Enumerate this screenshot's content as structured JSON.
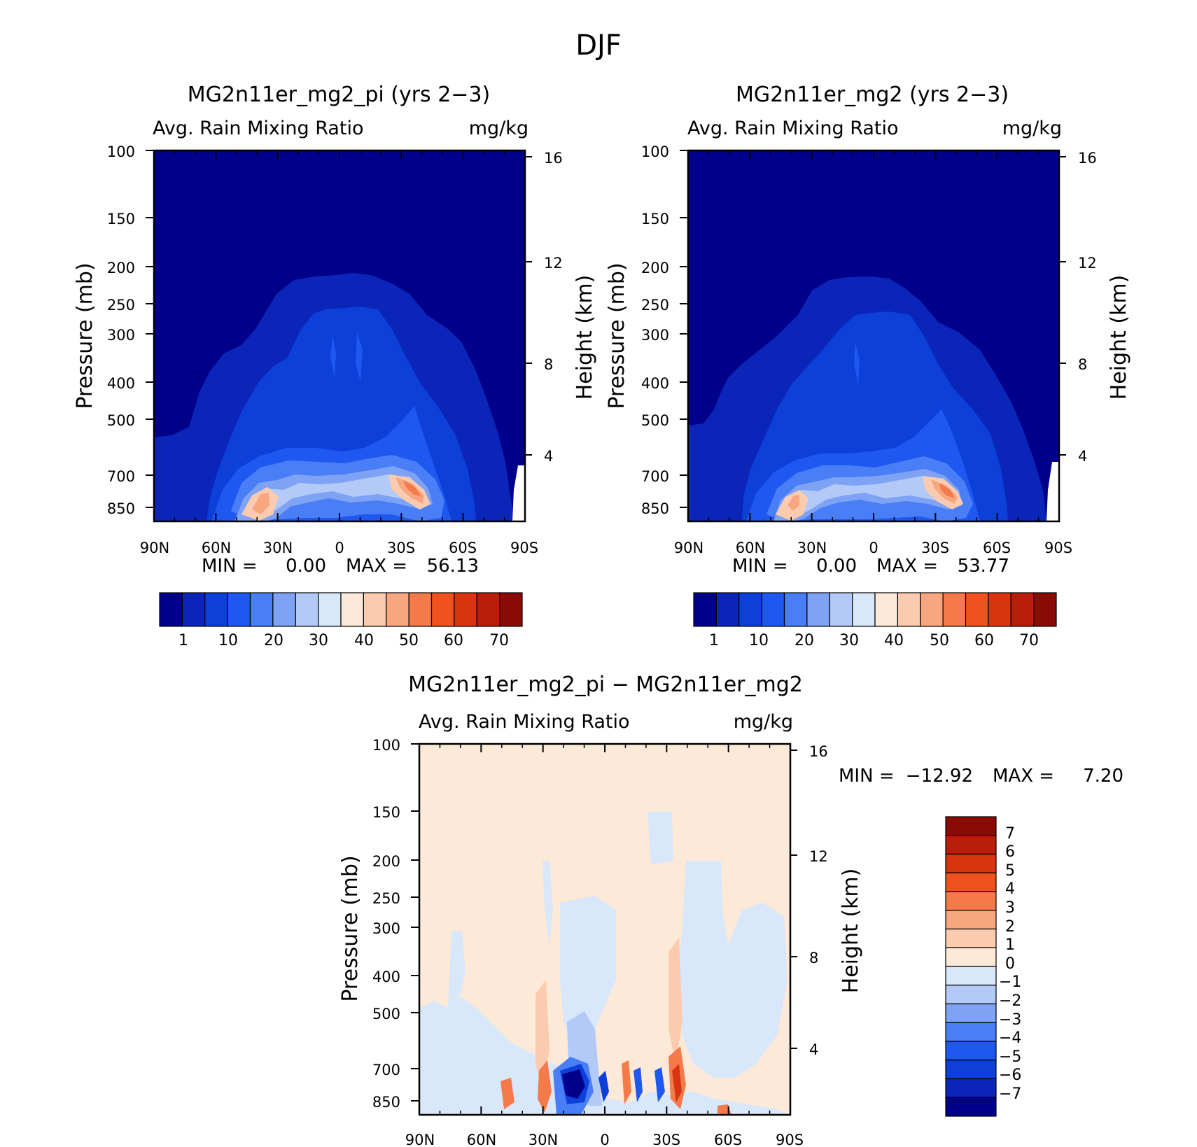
{
  "figure_title": "DJF",
  "panels": {
    "left": {
      "title": "MG2n11er_mg2_pi (yrs 2-3)",
      "subtitle": "Avg. Rain Mixing Ratio",
      "units": "mg/kg",
      "ylabel": "Pressure (mb)",
      "ylabel_right": "Height (km)",
      "min_label": "MIN =",
      "min_value": "0.00",
      "max_label": "MAX =",
      "max_value": "56.13"
    },
    "right": {
      "title": "MG2n11er_mg2 (yrs 2-3)",
      "subtitle": "Avg. Rain Mixing Ratio",
      "units": "mg/kg",
      "ylabel": "Pressure (mb)",
      "ylabel_right": "Height (km)",
      "min_label": "MIN =",
      "min_value": "0.00",
      "max_label": "MAX =",
      "max_value": "53.77"
    },
    "diff": {
      "title": "MG2n11er_mg2_pi - MG2n11er_mg2",
      "subtitle": "Avg. Rain Mixing Ratio",
      "units": "mg/kg",
      "ylabel": "Pressure (mb)",
      "ylabel_right": "Height (km)",
      "min_label": "MIN =",
      "min_value": "-12.92",
      "max_label": "MAX =",
      "max_value": "7.20"
    }
  },
  "chart_data": [
    {
      "type": "heatmap",
      "name": "MG2n11er_mg2_pi (yrs 2-3)",
      "x_ticks": [
        "90N",
        "60N",
        "30N",
        "0",
        "30S",
        "60S",
        "90S"
      ],
      "y_ticks": [
        "100",
        "150",
        "200",
        "250",
        "300",
        "400",
        "500",
        "700",
        "850"
      ],
      "y_right_ticks": [
        "16",
        "12",
        "8",
        "4"
      ],
      "colorbar": {
        "levels": [
          "1",
          "10",
          "20",
          "30",
          "40",
          "50",
          "60",
          "70"
        ],
        "colors": [
          "#00008a",
          "#0a25b8",
          "#0d3fd9",
          "#1e58f0",
          "#4a7ef7",
          "#7ea3f5",
          "#b3c9f7",
          "#d8e7fa",
          "#fde9d8",
          "#fbcbb0",
          "#f8a680",
          "#f57a4a",
          "#f0521e",
          "#d93410",
          "#b81e0a",
          "#8a0a05"
        ]
      },
      "min": 0.0,
      "max": 56.13
    },
    {
      "type": "heatmap",
      "name": "MG2n11er_mg2 (yrs 2-3)",
      "x_ticks": [
        "90N",
        "60N",
        "30N",
        "0",
        "30S",
        "60S",
        "90S"
      ],
      "y_ticks": [
        "100",
        "150",
        "200",
        "250",
        "300",
        "400",
        "500",
        "700",
        "850"
      ],
      "y_right_ticks": [
        "16",
        "12",
        "8",
        "4"
      ],
      "colorbar": {
        "levels": [
          "1",
          "10",
          "20",
          "30",
          "40",
          "50",
          "60",
          "70"
        ],
        "colors": [
          "#00008a",
          "#0a25b8",
          "#0d3fd9",
          "#1e58f0",
          "#4a7ef7",
          "#7ea3f5",
          "#b3c9f7",
          "#d8e7fa",
          "#fde9d8",
          "#fbcbb0",
          "#f8a680",
          "#f57a4a",
          "#f0521e",
          "#d93410",
          "#b81e0a",
          "#8a0a05"
        ]
      },
      "min": 0.0,
      "max": 53.77
    },
    {
      "type": "heatmap",
      "name": "MG2n11er_mg2_pi - MG2n11er_mg2",
      "x_ticks": [
        "90N",
        "60N",
        "30N",
        "0",
        "30S",
        "60S",
        "90S"
      ],
      "y_ticks": [
        "100",
        "150",
        "200",
        "250",
        "300",
        "400",
        "500",
        "700",
        "850"
      ],
      "y_right_ticks": [
        "16",
        "12",
        "8",
        "4"
      ],
      "colorbar": {
        "levels": [
          "7",
          "6",
          "5",
          "4",
          "3",
          "2",
          "1",
          "0",
          "-1",
          "-2",
          "-3",
          "-4",
          "-5",
          "-6",
          "-7"
        ],
        "colors": [
          "#8a0a05",
          "#b81e0a",
          "#d93410",
          "#f0521e",
          "#f57a4a",
          "#f8a680",
          "#fbcbb0",
          "#fde9d8",
          "#d8e7fa",
          "#b3c9f7",
          "#7ea3f5",
          "#4a7ef7",
          "#1e58f0",
          "#0d3fd9",
          "#0a25b8",
          "#00008a"
        ]
      },
      "min": -12.92,
      "max": 7.2
    }
  ]
}
